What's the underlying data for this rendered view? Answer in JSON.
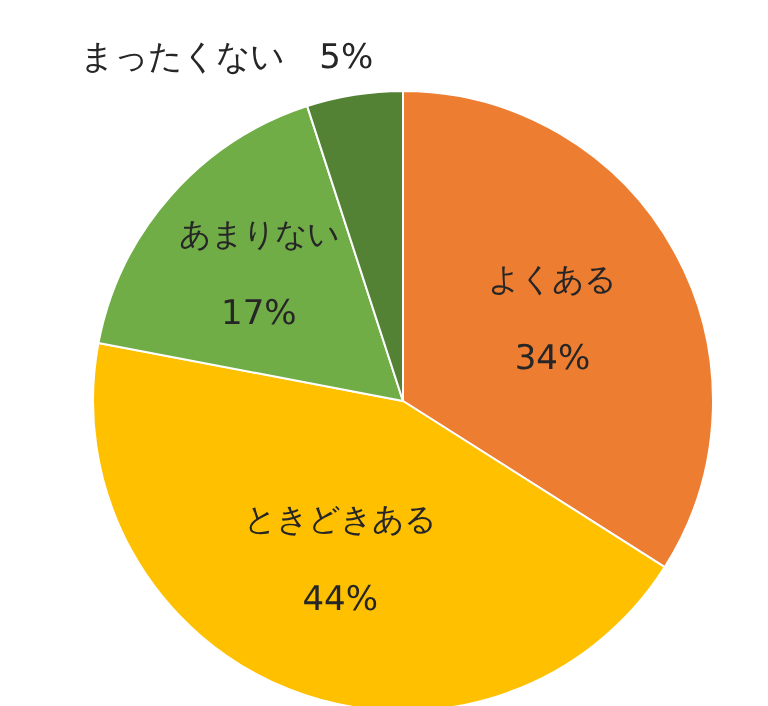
{
  "chart_data": {
    "type": "pie",
    "categories": [
      "よくある",
      "ときどきある",
      "あまりない",
      "まったくない"
    ],
    "values": [
      34,
      44,
      17,
      5
    ],
    "colors": [
      "#ed7d31",
      "#ffc000",
      "#70ad47",
      "#548235"
    ],
    "value_labels": [
      "34%",
      "44%",
      "17%",
      "5%"
    ]
  }
}
